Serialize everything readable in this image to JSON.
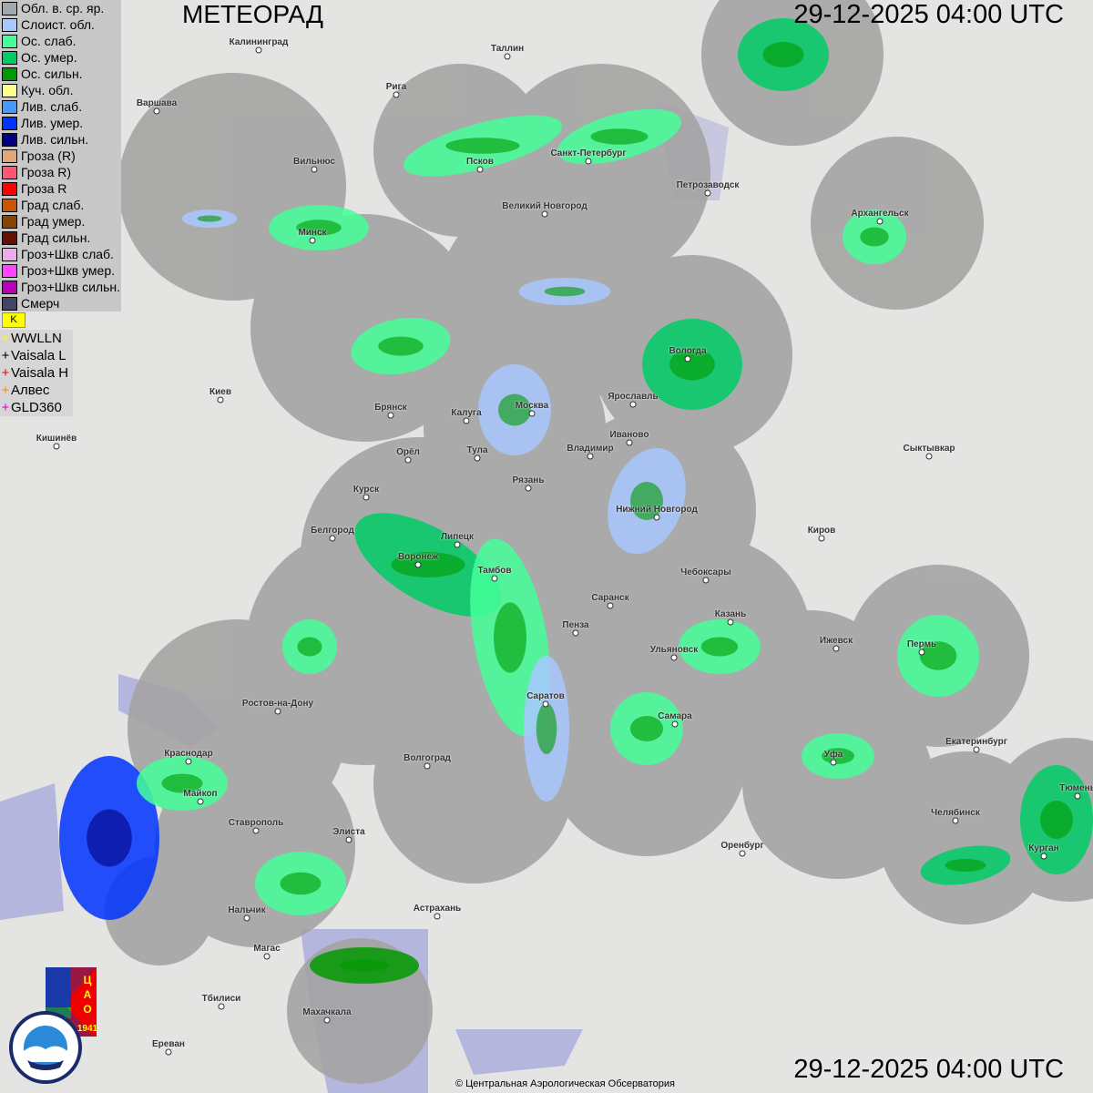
{
  "title": "МЕТЕОРАД",
  "timestamp_top": "29-12-2025  04:00 UTC",
  "timestamp_bottom": "29-12-2025  04:00 UTC",
  "copyright": "© Центральная Аэрологическая Обсерватория",
  "legend": [
    {
      "label": "Обл. в. ср. яр.",
      "color": "#a0a8b0"
    },
    {
      "label": "Слоист. обл.",
      "color": "#a8c8ff"
    },
    {
      "label": "Ос. слаб.",
      "color": "#44ff99"
    },
    {
      "label": "Ос. умер.",
      "color": "#00cc66"
    },
    {
      "label": "Ос. сильн.",
      "color": "#009900"
    },
    {
      "label": "Куч. обл.",
      "color": "#ffff88"
    },
    {
      "label": "Лив. слаб.",
      "color": "#4499ff"
    },
    {
      "label": "Лив. умер.",
      "color": "#0033ff"
    },
    {
      "label": "Лив. сильн.",
      "color": "#000080"
    },
    {
      "label": "Гроза (R)",
      "color": "#e0a878"
    },
    {
      "label": "Гроза R)",
      "color": "#ff5577"
    },
    {
      "label": "Гроза R",
      "color": "#ff0000"
    },
    {
      "label": "Град слаб.",
      "color": "#cc5500"
    },
    {
      "label": "Град умер.",
      "color": "#884400"
    },
    {
      "label": "Град сильн.",
      "color": "#661100"
    },
    {
      "label": "Гроз+Шкв слаб.",
      "color": "#eeaaee"
    },
    {
      "label": "Гроз+Шкв умер.",
      "color": "#ff44ff"
    },
    {
      "label": "Гроз+Шкв сильн.",
      "color": "#bb00bb"
    },
    {
      "label": "Смерч",
      "color": "#444466"
    }
  ],
  "lightning_flag": "K",
  "lightning_networks": [
    {
      "label": "WWLLN",
      "color": "#ffff00"
    },
    {
      "label": "Vaisala L",
      "color": "#000000"
    },
    {
      "label": "Vaisala H",
      "color": "#ff0000"
    },
    {
      "label": "Алвес",
      "color": "#ff8800"
    },
    {
      "label": "GLD360",
      "color": "#dd00dd"
    }
  ],
  "cities": [
    "Калининград",
    "Таллин",
    "Рига",
    "Варшава",
    "Вильнюс",
    "Псков",
    "Санкт-Петербург",
    "Петрозаводск",
    "Архангельск",
    "Великий Новгород",
    "Минск",
    "Вологда",
    "Ярославль",
    "Москва",
    "Калуга",
    "Брянск",
    "Киев",
    "Иваново",
    "Владимир",
    "Тула",
    "Орёл",
    "Кишинёв",
    "Сыктывкар",
    "Рязань",
    "Курск",
    "Нижний Новгород",
    "Киров",
    "Белгород",
    "Липецк",
    "Воронеж",
    "Тамбов",
    "Чебоксары",
    "Саранск",
    "Пенза",
    "Казань",
    "Ижевск",
    "Пермь",
    "Ульяновск",
    "Ростов-на-Дону",
    "Саратов",
    "Самара",
    "Екатеринбург",
    "Краснодар",
    "Уфа",
    "Волгоград",
    "Майкоп",
    "Тюмень",
    "Челябинск",
    "Ставрополь",
    "Элиста",
    "Оренбург",
    "Курган",
    "Астрахань",
    "Нальчик",
    "Магас",
    "Тбилиси",
    "Махачкала",
    "Ереван"
  ],
  "logos": {
    "cao": "ЦАО 1941",
    "roshydromet_ru": "РОСГИДРОМЕТ",
    "roshydromet_en": "ROSHYDROMET"
  },
  "colors": {
    "land": "#e4e4e2",
    "water": "#b4b6de",
    "radar_coverage": "#a4a4a4"
  }
}
